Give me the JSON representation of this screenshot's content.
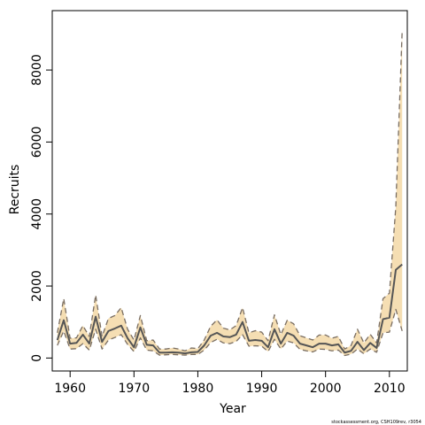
{
  "chart_data": {
    "type": "line",
    "xlabel": "Year",
    "ylabel": "Recruits",
    "xlim": [
      1957.2,
      2012.8
    ],
    "ylim": [
      -360,
      9650
    ],
    "x_ticks": [
      1960,
      1970,
      1980,
      1990,
      2000,
      2010
    ],
    "y_ticks": [
      0,
      2000,
      4000,
      6000,
      8000
    ],
    "band_color": "#f5deb3",
    "line_color": "#555555",
    "x": [
      1958,
      1959,
      1960,
      1961,
      1962,
      1963,
      1964,
      1965,
      1966,
      1967,
      1968,
      1969,
      1970,
      1971,
      1972,
      1973,
      1974,
      1975,
      1976,
      1977,
      1978,
      1979,
      1980,
      1981,
      1982,
      1983,
      1984,
      1985,
      1986,
      1987,
      1988,
      1989,
      1990,
      1991,
      1992,
      1993,
      1994,
      1995,
      1996,
      1997,
      1998,
      1999,
      2000,
      2001,
      2002,
      2003,
      2004,
      2005,
      2006,
      2007,
      2008,
      2009,
      2010,
      2011,
      2012
    ],
    "series": [
      {
        "role": "estimate",
        "values": [
          500,
          1050,
          400,
          420,
          650,
          400,
          1150,
          450,
          750,
          820,
          900,
          550,
          300,
          850,
          370,
          350,
          150,
          150,
          160,
          150,
          130,
          160,
          170,
          350,
          620,
          700,
          600,
          580,
          650,
          1000,
          480,
          500,
          480,
          300,
          800,
          400,
          700,
          620,
          400,
          350,
          300,
          400,
          400,
          350,
          380,
          150,
          200,
          450,
          220,
          420,
          280,
          1080,
          1120,
          2450,
          2600
        ]
      },
      {
        "role": "lower",
        "values": [
          350,
          750,
          250,
          260,
          400,
          220,
          800,
          250,
          500,
          570,
          650,
          380,
          180,
          560,
          220,
          200,
          80,
          90,
          100,
          90,
          80,
          100,
          100,
          220,
          430,
          520,
          420,
          400,
          460,
          650,
          330,
          340,
          330,
          180,
          520,
          250,
          470,
          420,
          240,
          200,
          170,
          250,
          240,
          200,
          220,
          70,
          110,
          250,
          120,
          250,
          160,
          700,
          720,
          1350,
          750
        ]
      },
      {
        "role": "upper",
        "values": [
          700,
          1650,
          550,
          560,
          900,
          600,
          1750,
          600,
          1100,
          1180,
          1400,
          800,
          500,
          1180,
          480,
          500,
          250,
          250,
          280,
          250,
          200,
          280,
          260,
          500,
          880,
          1060,
          830,
          780,
          900,
          1400,
          700,
          760,
          720,
          480,
          1200,
          650,
          1050,
          950,
          620,
          560,
          500,
          640,
          640,
          550,
          600,
          250,
          350,
          800,
          420,
          660,
          420,
          1650,
          1800,
          4200,
          9100
        ]
      }
    ],
    "credit": "stockassessment.org, CSH109rev, r3054"
  }
}
